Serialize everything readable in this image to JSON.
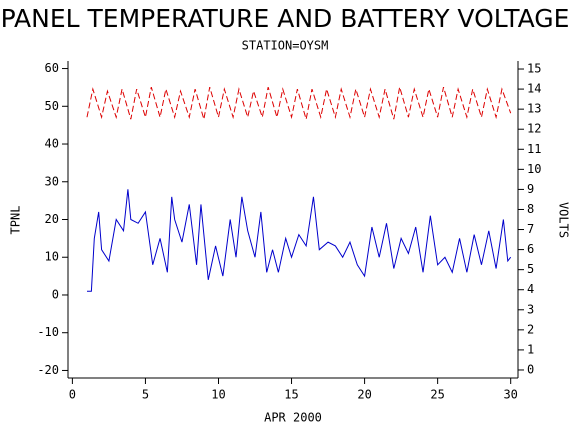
{
  "chart_data": {
    "type": "line",
    "title": "PANEL TEMPERATURE AND BATTERY VOLTAGE",
    "subtitle": "STATION=OYSM",
    "xlabel": "APR 2000",
    "ylabel": "TPNL",
    "y2label": "VOLTS",
    "xlim": [
      -0.3,
      30.5
    ],
    "xticks": [
      0,
      5,
      10,
      15,
      20,
      25,
      30
    ],
    "ylim": [
      -22,
      62
    ],
    "yticks": [
      -20,
      -10,
      0,
      10,
      20,
      30,
      40,
      50,
      60
    ],
    "y2lim": [
      -0.4,
      15.4
    ],
    "y2ticks": [
      0,
      1,
      2,
      3,
      4,
      5,
      6,
      7,
      8,
      9,
      10,
      11,
      12,
      13,
      14,
      15
    ],
    "series": [
      {
        "name": "TPNL",
        "color": "#0000cc",
        "dashed": false,
        "x": [
          1,
          1.3,
          1.5,
          1.8,
          2,
          2.5,
          3,
          3.5,
          3.8,
          4,
          4.5,
          5,
          5.5,
          6,
          6.5,
          6.8,
          7,
          7.5,
          8,
          8.5,
          8.8,
          9.3,
          9.8,
          10.3,
          10.8,
          11.2,
          11.6,
          12,
          12.5,
          12.9,
          13.3,
          13.7,
          14.1,
          14.6,
          15,
          15.5,
          16,
          16.5,
          16.9,
          17.5,
          18,
          18.5,
          19,
          19.5,
          20,
          20.5,
          21,
          21.5,
          22,
          22.5,
          23,
          23.5,
          24,
          24.5,
          25,
          25.5,
          26,
          26.5,
          27,
          27.5,
          28,
          28.5,
          29,
          29.5,
          29.8,
          30
        ],
        "values": [
          1,
          1,
          15,
          22,
          12,
          9,
          20,
          17,
          28,
          20,
          19,
          22,
          8,
          15,
          6,
          26,
          20,
          14,
          24,
          8,
          24,
          4,
          13,
          5,
          20,
          10,
          26,
          17,
          10,
          22,
          6,
          12,
          6,
          15,
          10,
          16,
          13,
          26,
          12,
          14,
          13,
          10,
          14,
          8,
          5,
          18,
          10,
          19,
          7,
          15,
          11,
          18,
          6,
          21,
          8,
          10,
          6,
          15,
          6,
          16,
          8,
          17,
          7,
          20,
          9,
          10
        ]
      },
      {
        "name": "VOLTS",
        "color": "#dd0000",
        "dashed": true,
        "axis": "y2",
        "x": [
          1,
          1.4,
          2,
          2.4,
          3,
          3.4,
          4,
          4.4,
          5,
          5.4,
          6,
          6.4,
          7,
          7.4,
          8,
          8.4,
          9,
          9.4,
          10,
          10.4,
          11,
          11.4,
          12,
          12.4,
          13,
          13.4,
          14,
          14.4,
          15,
          15.4,
          16,
          16.4,
          17,
          17.4,
          18,
          18.4,
          19,
          19.4,
          20,
          20.4,
          21,
          21.4,
          22,
          22.4,
          23,
          23.4,
          24,
          24.4,
          25,
          25.4,
          26,
          26.4,
          27,
          27.4,
          28,
          28.4,
          29,
          29.4,
          30
        ],
        "values": [
          12.6,
          14.0,
          12.6,
          13.9,
          12.6,
          14.0,
          12.5,
          14.0,
          12.6,
          14.1,
          12.6,
          14.0,
          12.6,
          13.9,
          12.6,
          14.0,
          12.5,
          14.1,
          12.6,
          14.0,
          12.6,
          14.0,
          12.6,
          13.9,
          12.6,
          14.1,
          12.6,
          14.0,
          12.6,
          14.0,
          12.5,
          14.0,
          12.6,
          14.0,
          12.6,
          14.0,
          12.6,
          14.0,
          12.6,
          14.0,
          12.6,
          14.0,
          12.5,
          14.1,
          12.6,
          14.0,
          12.6,
          14.0,
          12.6,
          14.1,
          12.6,
          14.0,
          12.6,
          14.0,
          12.6,
          14.0,
          12.6,
          14.0,
          12.8
        ]
      }
    ]
  }
}
